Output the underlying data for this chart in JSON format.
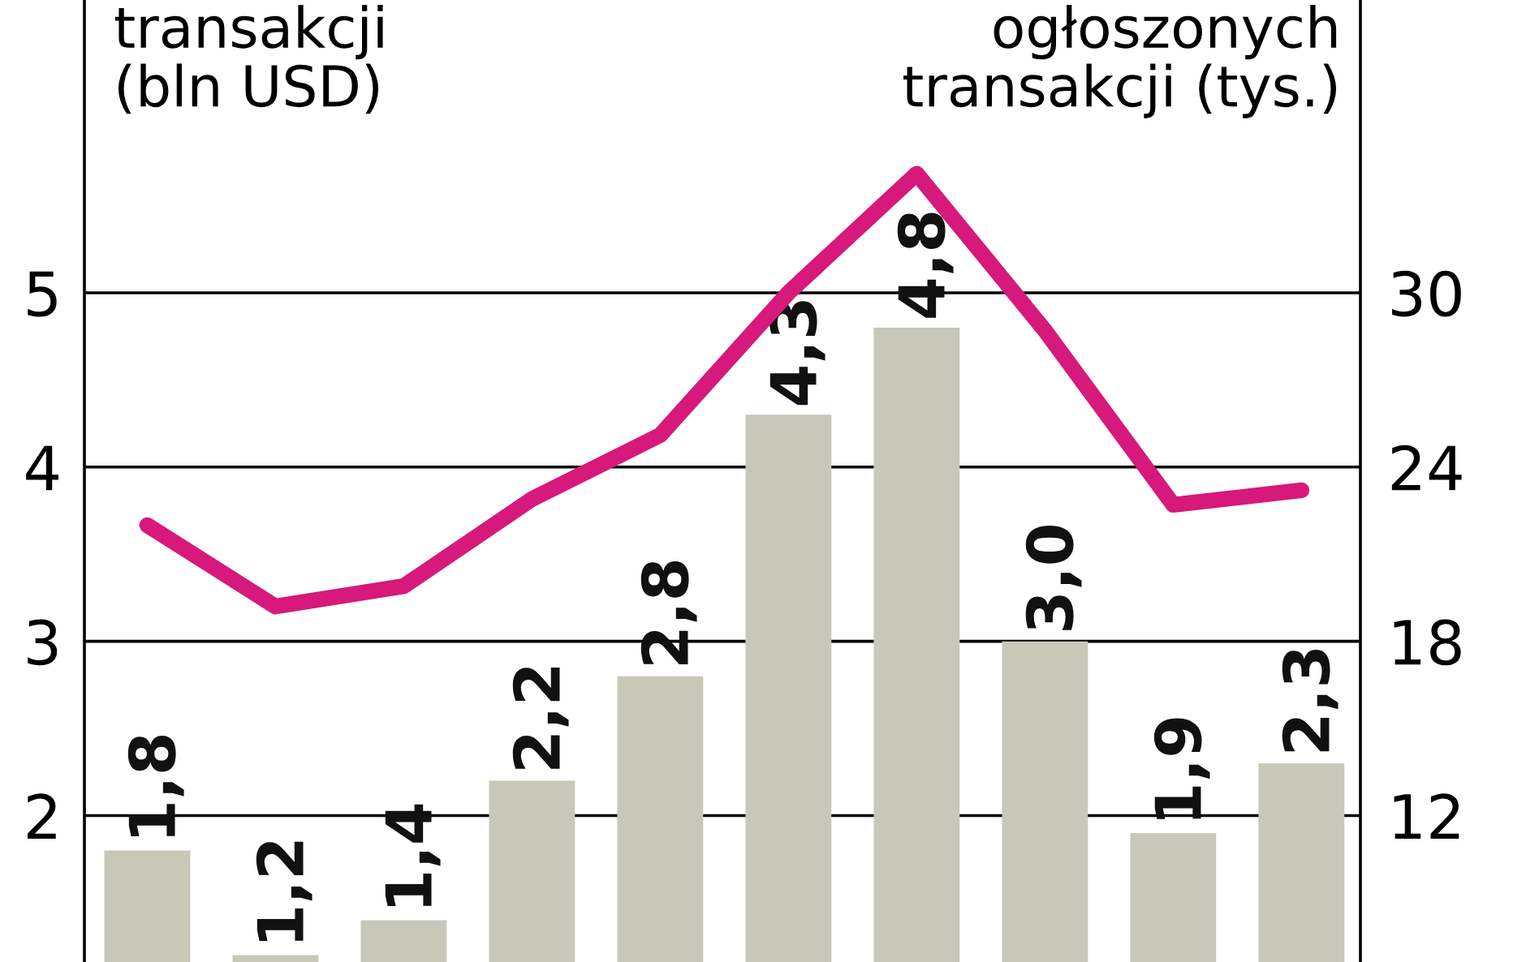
{
  "chart_data": {
    "type": "bar",
    "ylabel": "transakcji\n(bln USD)",
    "y2label": "ogłoszonych\ntransakcji (tys.)",
    "categories": [
      null,
      null,
      null,
      null,
      null,
      null,
      null,
      null,
      null,
      null
    ],
    "series": [
      {
        "color": "#c8c8b8",
        "values": [
          1.8,
          1.2,
          1.4,
          2.2,
          2.8,
          4.3,
          4.8,
          3.0,
          1.9,
          2.3
        ],
        "value_labels": [
          "1,8",
          "1,2",
          "1,4",
          "2,2",
          "2,8",
          "4,3",
          "4,8",
          "3,0",
          "1,9",
          "2,3"
        ]
      },
      {
        "type": "line",
        "axis": "y2",
        "color": "#d6197a",
        "values": [
          22.0,
          19.2,
          19.9,
          22.9,
          25.1,
          30.0,
          34.1,
          28.7,
          22.7,
          23.2
        ]
      }
    ],
    "ylim": [
      1.16,
      6.68
    ],
    "yticks": [
      2,
      3,
      4,
      5
    ],
    "y2lim": [
      6.96,
      40.08
    ],
    "y2ticks": [
      12,
      18,
      24,
      30
    ],
    "grid": "y",
    "marker": "none",
    "line_style": "solid",
    "tick_labels": "y",
    "legend": false
  }
}
